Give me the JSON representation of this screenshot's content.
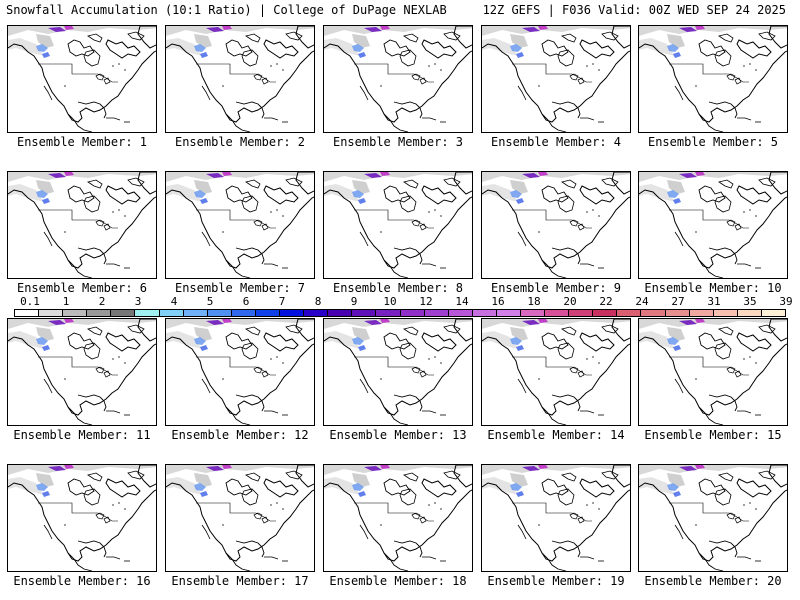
{
  "header": {
    "title_left": "Snowfall Accumulation (10:1 Ratio) | College of DuPage NEXLAB",
    "title_right": "12Z GEFS | F036 Valid: 00Z WED SEP 24 2025"
  },
  "panels": [
    {
      "label": "Ensemble Member: 1"
    },
    {
      "label": "Ensemble Member: 2"
    },
    {
      "label": "Ensemble Member: 3"
    },
    {
      "label": "Ensemble Member: 4"
    },
    {
      "label": "Ensemble Member: 5"
    },
    {
      "label": "Ensemble Member: 6"
    },
    {
      "label": "Ensemble Member: 7"
    },
    {
      "label": "Ensemble Member: 8"
    },
    {
      "label": "Ensemble Member: 9"
    },
    {
      "label": "Ensemble Member: 10"
    },
    {
      "label": "Ensemble Member: 11"
    },
    {
      "label": "Ensemble Member: 12"
    },
    {
      "label": "Ensemble Member: 13"
    },
    {
      "label": "Ensemble Member: 14"
    },
    {
      "label": "Ensemble Member: 15"
    },
    {
      "label": "Ensemble Member: 16"
    },
    {
      "label": "Ensemble Member: 17"
    },
    {
      "label": "Ensemble Member: 18"
    },
    {
      "label": "Ensemble Member: 19"
    },
    {
      "label": "Ensemble Member: 20"
    }
  ],
  "colorbar": {
    "ticks": [
      "0.1",
      "1",
      "2",
      "3",
      "4",
      "5",
      "6",
      "7",
      "8",
      "9",
      "10",
      "12",
      "14",
      "16",
      "18",
      "20",
      "22",
      "24",
      "27",
      "31",
      "35",
      "39"
    ],
    "colors": [
      "#ffffff",
      "#dddddd",
      "#bbbbbb",
      "#999999",
      "#777777",
      "#a0f0f0",
      "#80d0f8",
      "#70b0f8",
      "#5090f0",
      "#3068f0",
      "#1040e8",
      "#0010e0",
      "#2800c8",
      "#4800b0",
      "#6010b8",
      "#7820c0",
      "#9030c8",
      "#a040d0",
      "#b858d8",
      "#c870e0",
      "#d080e8",
      "#d868c0",
      "#d85098",
      "#d04078",
      "#c83060",
      "#d86070",
      "#e07880",
      "#e89090",
      "#f0a8a0",
      "#f8c0b0",
      "#fcd8c0",
      "#fff0d8"
    ]
  }
}
